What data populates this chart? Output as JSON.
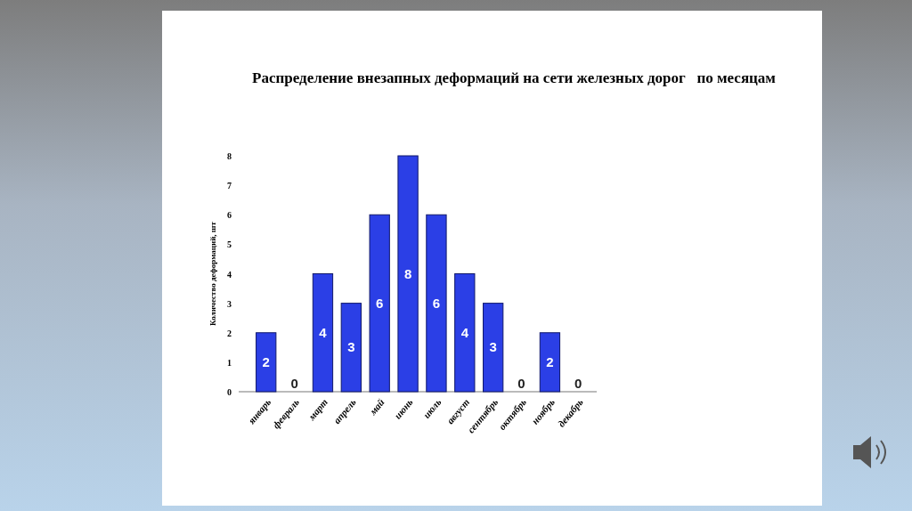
{
  "chart_data": {
    "type": "bar",
    "title": "Распределение внезапных деформаций на сети железных дорог   по месяцам",
    "ylabel": "Количество деформаций, шт",
    "categories": [
      "январь",
      "февраль",
      "март",
      "апрель",
      "май",
      "июнь",
      "июль",
      "август",
      "сентябрь",
      "октябрь",
      "ноябрь",
      "декабрь"
    ],
    "values": [
      2,
      0,
      4,
      3,
      6,
      8,
      6,
      4,
      3,
      0,
      2,
      0
    ],
    "color": "#2b3fe6",
    "ylim": [
      0,
      8
    ],
    "yticks": [
      0,
      1,
      2,
      3,
      4,
      5,
      6,
      7,
      8
    ],
    "grid": false,
    "data_labels": true
  }
}
